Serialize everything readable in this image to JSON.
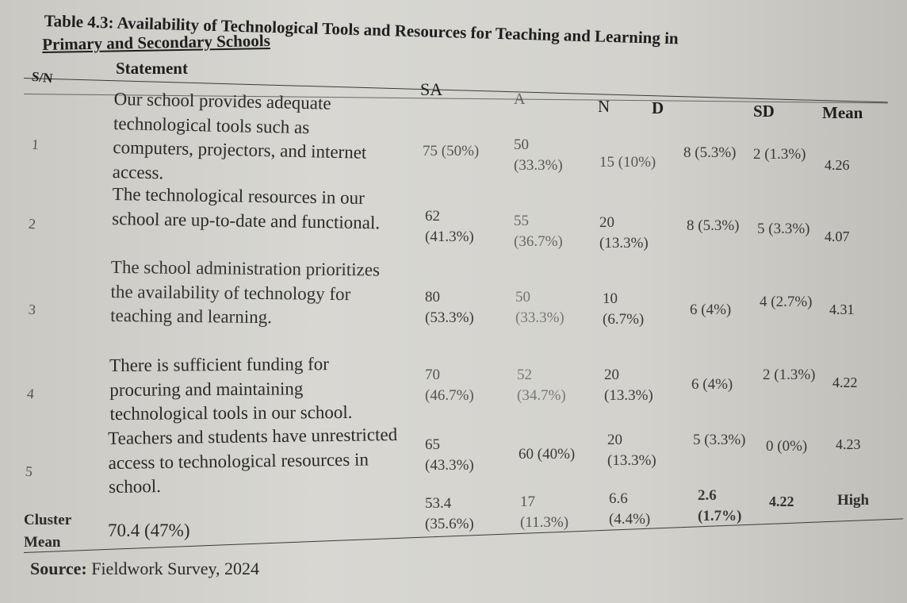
{
  "table": {
    "caption_line1": "Table 4.3: Availability of Technological Tools and Resources for Teaching and Learning in",
    "caption_line2": "Primary and Secondary Schools",
    "headers": {
      "sn": "S/N",
      "statement": "Statement",
      "sa": "SA",
      "a": "A",
      "n": "N",
      "d": "D",
      "sd": "SD",
      "mean": "Mean"
    },
    "rows": [
      {
        "sn": "1",
        "statement": "Our school provides adequate technological tools such as computers, projectors, and internet access.",
        "sa": "75 (50%)",
        "a": "50 (33.3%)",
        "n": "15 (10%)",
        "d": "8 (5.3%)",
        "sd": "2 (1.3%)",
        "mean": "4.26"
      },
      {
        "sn": "2",
        "statement": "The technological resources in our school are up-to-date and functional.",
        "sa": "62 (41.3%)",
        "a": "55 (36.7%)",
        "n": "20 (13.3%)",
        "d": "8 (5.3%)",
        "sd": "5 (3.3%)",
        "mean": "4.07"
      },
      {
        "sn": "3",
        "statement": "The school administration prioritizes the availability of technology for teaching and learning.",
        "sa": "80 (53.3%)",
        "a": "50 (33.3%)",
        "n": "10 (6.7%)",
        "d": "6 (4%)",
        "sd": "4 (2.7%)",
        "mean": "4.31"
      },
      {
        "sn": "4",
        "statement": "There is sufficient funding for procuring and maintaining technological tools in our school.",
        "sa": "70 (46.7%)",
        "a": "52 (34.7%)",
        "n": "20 (13.3%)",
        "d": "6 (4%)",
        "sd": "2 (1.3%)",
        "mean": "4.22"
      },
      {
        "sn": "5",
        "statement": "Teachers and students have unrestricted access to technological resources in school.",
        "sa": "65 (43.3%)",
        "a": "60 (40%)",
        "n": "20 (13.3%)",
        "d": "5 (3.3%)",
        "sd": "0 (0%)",
        "mean": "4.23"
      }
    ],
    "cluster": {
      "label_line1": "Cluster",
      "label_line2": "Mean",
      "statement": "70.4 (47%)",
      "sa": "53.4 (35.6%)",
      "a": "17 (11.3%)",
      "n": "6.6 (4.4%)",
      "d": "2.6 (1.7%)",
      "sd": "4.22",
      "mean": "High"
    },
    "source": {
      "label": "Source:",
      "text": "Fieldwork Survey, 2024"
    }
  }
}
